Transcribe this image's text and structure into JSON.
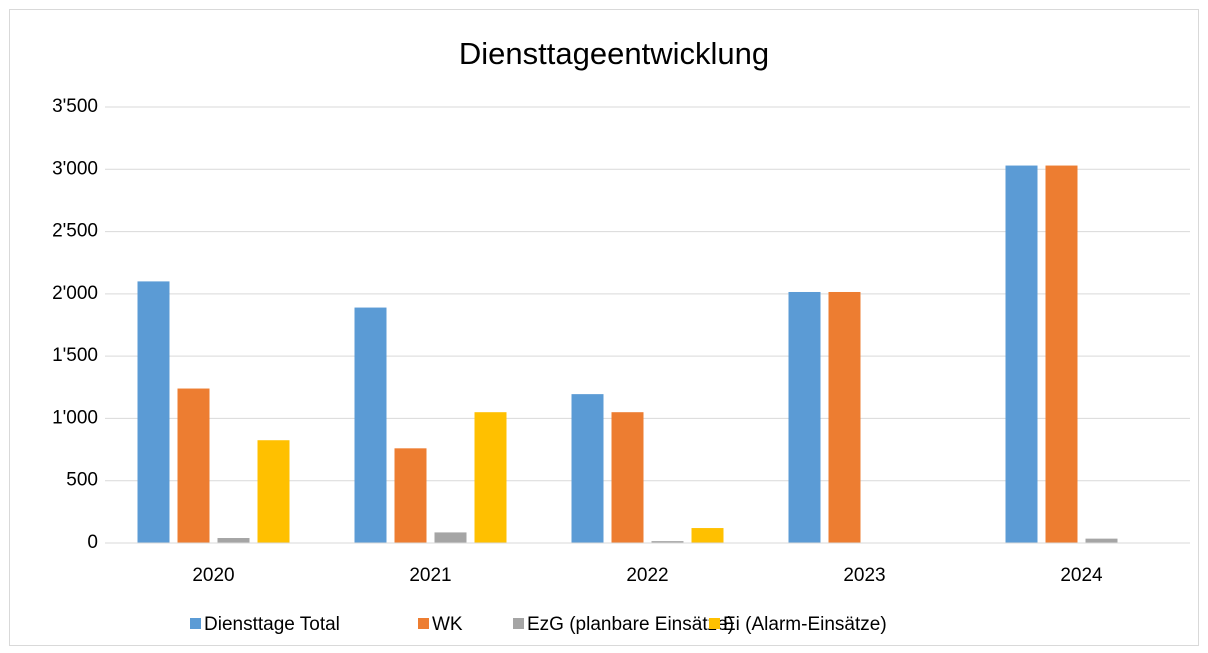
{
  "chart_data": {
    "type": "bar",
    "title": "Diensttageentwicklung",
    "categories": [
      "2020",
      "2021",
      "2022",
      "2023",
      "2024"
    ],
    "series": [
      {
        "name": "Diensttage Total",
        "color": "#5b9bd5",
        "values": [
          2100,
          1890,
          1195,
          2015,
          3030
        ]
      },
      {
        "name": "WK",
        "color": "#ed7d31",
        "values": [
          1240,
          760,
          1050,
          2015,
          3030
        ]
      },
      {
        "name": "EzG (planbare Einsätze)",
        "color": "#a5a5a5",
        "values": [
          40,
          85,
          15,
          0,
          35
        ]
      },
      {
        "name": "Ei (Alarm-Einsätze)",
        "color": "#ffc000",
        "values": [
          825,
          1050,
          120,
          0,
          0
        ]
      }
    ],
    "ylim": [
      0,
      3500
    ],
    "yticks": [
      0,
      500,
      {
        "value": 1000,
        "label": "1'000"
      },
      {
        "value": 1500,
        "label": "1'500"
      },
      {
        "value": 2000,
        "label": "2'000"
      },
      {
        "value": 2500,
        "label": "2'500"
      },
      {
        "value": 3000,
        "label": "3'000"
      },
      {
        "value": 3500,
        "label": "3'500"
      }
    ],
    "grid": true,
    "legend": "bottom"
  }
}
